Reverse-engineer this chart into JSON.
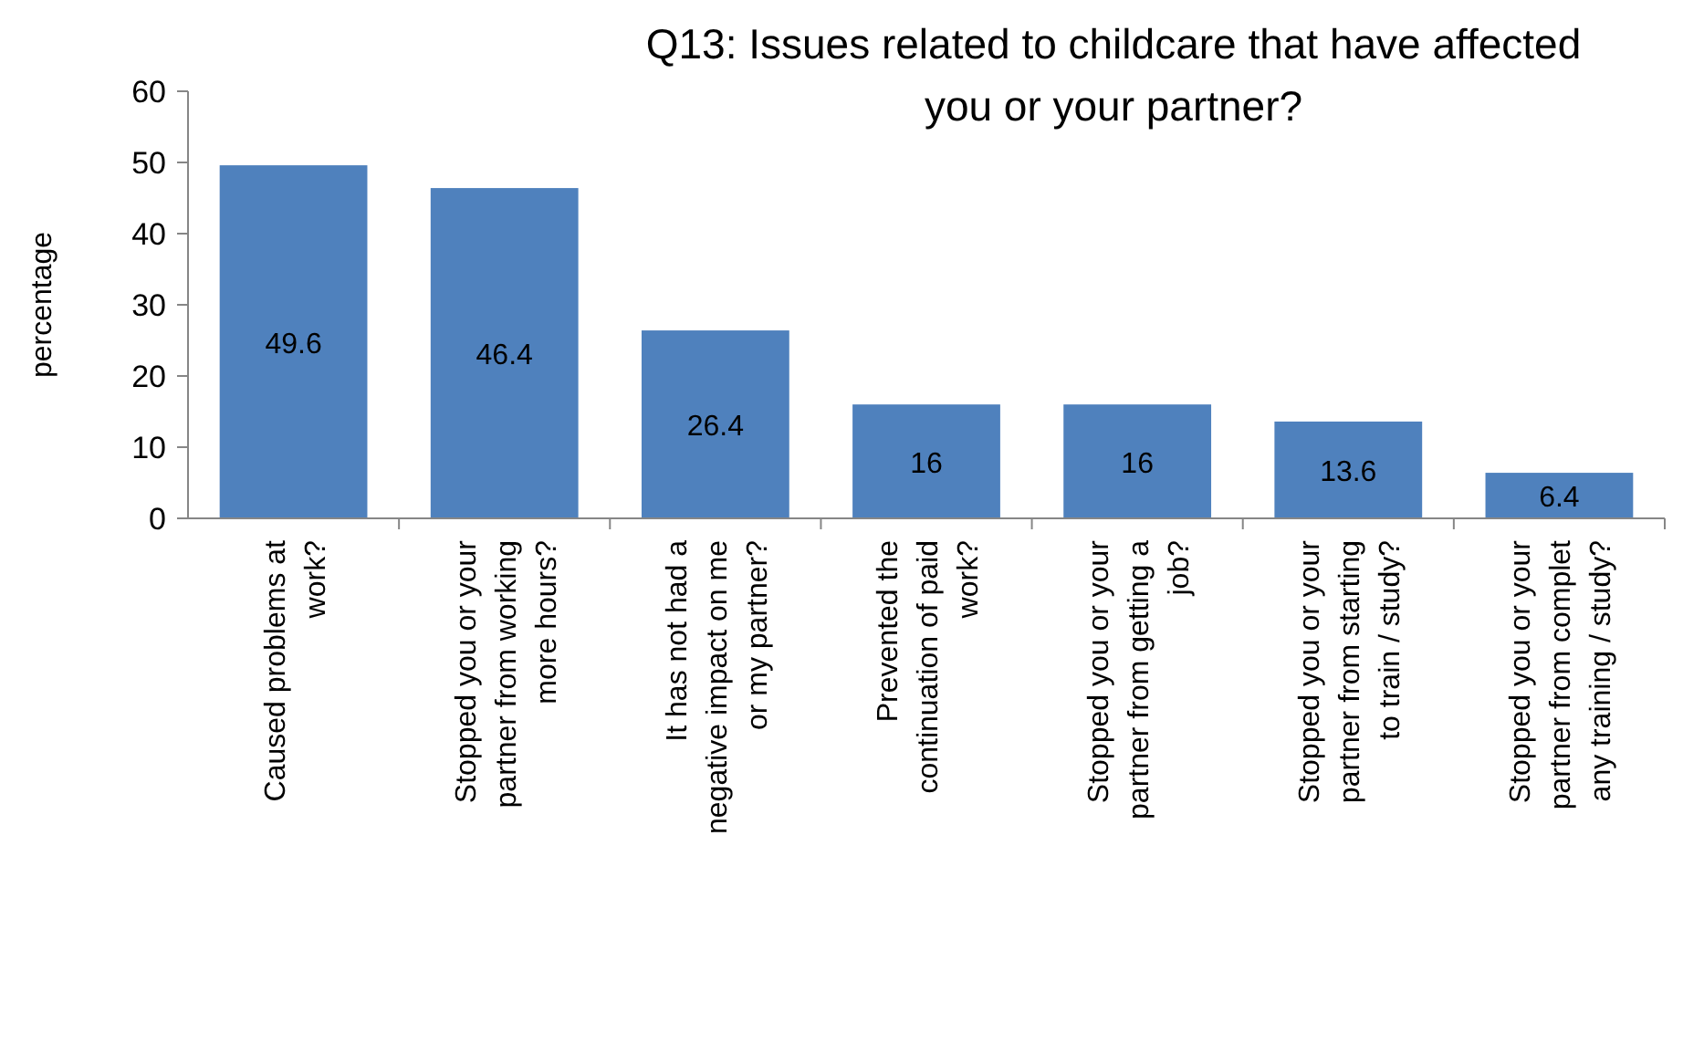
{
  "chart_data": {
    "type": "bar",
    "title": "Q13: Issues related to childcare that have affected you or your partner?",
    "ylabel": "percentage",
    "categories": [
      "Caused problems at work?",
      "Stopped you or your partner from working more hours?",
      "It has not had a negative impact on me or my partner?",
      "Prevented the continuation of paid work?",
      "Stopped you or your partner from getting a job?",
      "Stopped you or your partner from starting to train / study?",
      "Stopped you or your partner from complet any training / study?"
    ],
    "values": [
      49.6,
      46.4,
      26.4,
      16,
      16,
      13.6,
      6.4
    ],
    "color": "#4f81bd",
    "ylim": [
      0,
      60
    ],
    "yticks": [
      0,
      10,
      20,
      30,
      40,
      50,
      60
    ],
    "grid": false,
    "data_labels": true
  }
}
